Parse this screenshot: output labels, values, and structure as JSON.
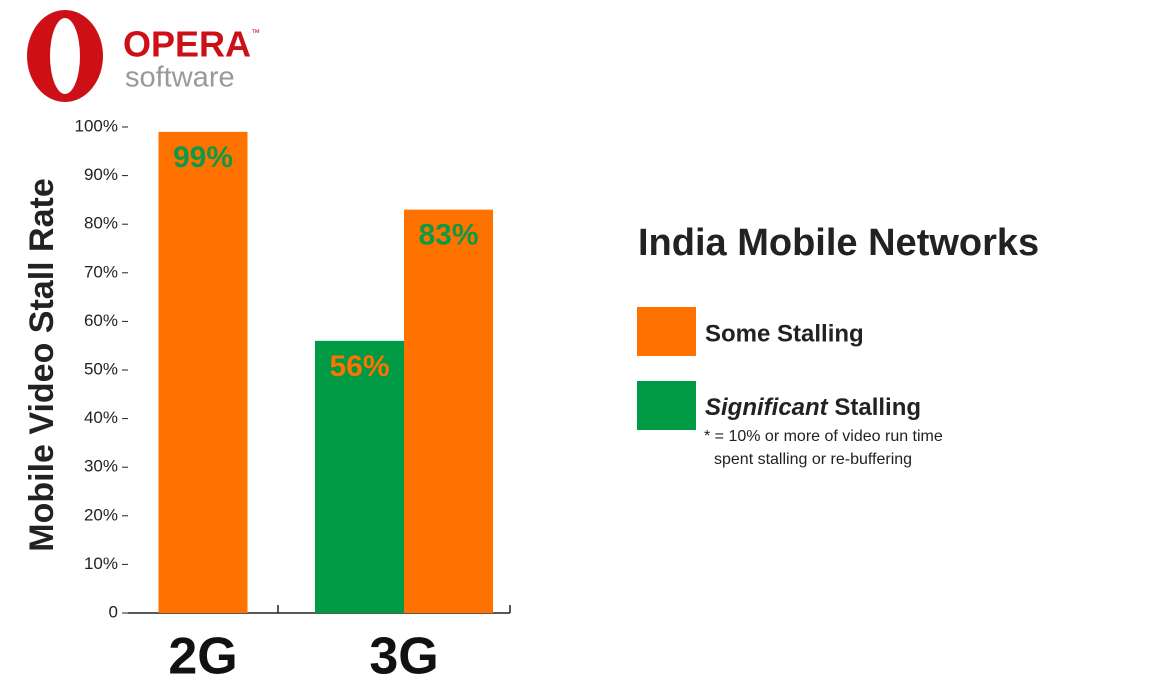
{
  "logo": {
    "name": "OPERA",
    "mark": "™",
    "subtitle": "software"
  },
  "chart_data": {
    "type": "bar",
    "title": "India Mobile Networks",
    "y_label": "Mobile Video Stall Rate",
    "categories": [
      "2G",
      "3G"
    ],
    "series": [
      {
        "name": "Some Stalling",
        "color": "#ff7200",
        "label_color": "#0d9a46",
        "values": [
          99,
          83
        ],
        "value_labels": [
          "99%",
          "83%"
        ]
      },
      {
        "name": "Significant Stalling",
        "color": "#009944",
        "label_color": "#ff7200",
        "values": [
          null,
          56
        ],
        "value_labels": [
          null,
          "56%"
        ]
      }
    ],
    "note": [
      "* = 10% or more of video run time",
      "spent stalling or re-buffering"
    ],
    "ylim": [
      0,
      100
    ],
    "yticks": [
      0,
      {
        "value": 10,
        "label": "10%"
      },
      {
        "value": 20,
        "label": "20%"
      },
      {
        "value": 30,
        "label": "30%"
      },
      {
        "value": 40,
        "label": "40%"
      },
      {
        "value": 50,
        "label": "50%"
      },
      {
        "value": 60,
        "label": "60%"
      },
      {
        "value": 70,
        "label": "70%"
      },
      {
        "value": 80,
        "label": "80%"
      },
      {
        "value": 90,
        "label": "90%"
      },
      {
        "value": 100,
        "label": "100%"
      }
    ],
    "grid": false
  }
}
